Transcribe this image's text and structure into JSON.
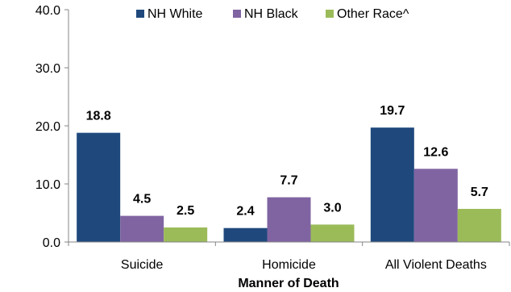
{
  "chart_data": {
    "type": "bar",
    "categories": [
      "Suicide",
      "Homicide",
      "All Violent Deaths"
    ],
    "series": [
      {
        "name": "NH White",
        "values": [
          18.8,
          2.4,
          19.7
        ],
        "color": "#1F497D"
      },
      {
        "name": "NH Black",
        "values": [
          4.5,
          7.7,
          12.6
        ],
        "color": "#8064A2"
      },
      {
        "name": "Other Race^",
        "values": [
          2.5,
          3.0,
          5.7
        ],
        "color": "#9BBB59"
      }
    ],
    "data_labels": [
      [
        "18.8",
        "2.4",
        "19.7"
      ],
      [
        "4.5",
        "7.7",
        "12.6"
      ],
      [
        "2.5",
        "3.0",
        "5.7"
      ]
    ],
    "title": "",
    "xlabel": "Manner of Death",
    "ylabel": "",
    "ylim": [
      0,
      40
    ],
    "yticks": [
      "0.0",
      "10.0",
      "20.0",
      "30.0",
      "40.0"
    ],
    "ytick_values": [
      0,
      10,
      20,
      30,
      40
    ],
    "legend_position": "top",
    "grid": false
  }
}
